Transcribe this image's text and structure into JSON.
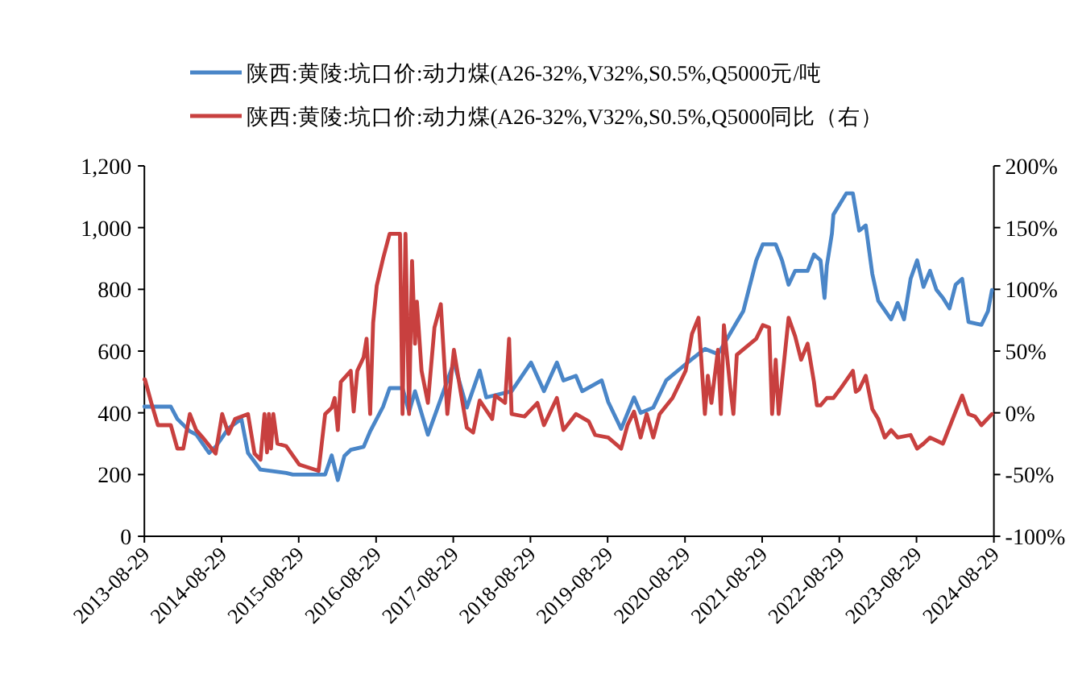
{
  "chart_data": {
    "type": "line",
    "legend": "top",
    "xlim": [
      "2013-08-29",
      "2024-08-29"
    ],
    "xticks": [
      "2013-08-29",
      "2014-08-29",
      "2015-08-29",
      "2016-08-29",
      "2017-08-29",
      "2018-08-29",
      "2019-08-29",
      "2020-08-29",
      "2021-08-29",
      "2022-08-29",
      "2023-08-29",
      "2024-08-29"
    ],
    "ylim": [
      0,
      1200
    ],
    "yticks": [
      0,
      200,
      400,
      600,
      800,
      {
        "value": 1000,
        "label": "1,000"
      },
      {
        "value": 1200,
        "label": "1,200"
      }
    ],
    "y2lim": [
      -100,
      200
    ],
    "y2ticks": [
      {
        "value": -100,
        "label": "-100%"
      },
      {
        "value": -50,
        "label": "-50%"
      },
      {
        "value": 0,
        "label": "0%"
      },
      {
        "value": 50,
        "label": "50%"
      },
      {
        "value": 100,
        "label": "100%"
      },
      {
        "value": 150,
        "label": "150%"
      },
      {
        "value": 200,
        "label": "200%"
      }
    ],
    "series": [
      {
        "name": "陕西:黄陵:坑口价:动力煤(A26-32%,V32%,S0.5%,Q5000元/吨",
        "color": "#4a86c8",
        "x": [
          "2013-08-29",
          "2014-01",
          "2014-02",
          "2014-04",
          "2014-05",
          "2014-07",
          "2014-08",
          "2014-10",
          "2014-12",
          "2015-01",
          "2015-03",
          "2015-07",
          "2015-08",
          "2016-01",
          "2016-02",
          "2016-03",
          "2016-04",
          "2016-05",
          "2016-07",
          "2016-08",
          "2016-10",
          "2016-11",
          "2017-01",
          "2017-02",
          "2017-03",
          "2017-05",
          "2017-09",
          "2017-11",
          "2018-01",
          "2018-02",
          "2018-06",
          "2018-09",
          "2018-11",
          "2019-01",
          "2019-02",
          "2019-04",
          "2019-05",
          "2019-08",
          "2019-09",
          "2019-11",
          "2020-01",
          "2020-02",
          "2020-04",
          "2020-06",
          "2020-08",
          "2020-10",
          "2020-12",
          "2021-02",
          "2021-05",
          "2021-06",
          "2021-08",
          "2021-09",
          "2021-11",
          "2021-12",
          "2022-01",
          "2022-02",
          "2022-04",
          "2022-05",
          "2022-06",
          "2022-06-20",
          "2022-07",
          "2022-07-25",
          "2022-08",
          "2022-10",
          "2022-11",
          "2022-12",
          "2023-01",
          "2023-02",
          "2023-03",
          "2023-05",
          "2023-06",
          "2023-07",
          "2023-08",
          "2023-09",
          "2023-10",
          "2023-11",
          "2023-12",
          "2024-01",
          "2024-02",
          "2024-03",
          "2024-04",
          "2024-05",
          "2024-07",
          "2024-08",
          "2024-08-20"
        ],
        "values": [
          420,
          420,
          380,
          340,
          330,
          270,
          290,
          350,
          380,
          270,
          216,
          205,
          200,
          200,
          262,
          182,
          260,
          280,
          290,
          340,
          420,
          480,
          480,
          403,
          470,
          329,
          563,
          417,
          537,
          450,
          470,
          563,
          470,
          563,
          505,
          520,
          470,
          505,
          435,
          348,
          450,
          400,
          417,
          505,
          540,
          574,
          607,
          590,
          694,
          730,
          894,
          946,
          946,
          894,
          815,
          860,
          860,
          913,
          894,
          772,
          877,
          981,
          1042,
          1111,
          1111,
          990,
          1007,
          850,
          763,
          703,
          756,
          703,
          834,
          894,
          808,
          860,
          799,
          772,
          738,
          815,
          834,
          694,
          685,
          729,
          798
        ]
      },
      {
        "name": "陕西:黄陵:坑口价:动力煤(A26-32%,V32%,S0.5%,Q5000同比（右）",
        "color": "#c8403f",
        "axis": "y2",
        "x": [
          "2013-08-29",
          "2013-09",
          "2013-10",
          "2013-11",
          "2014-01",
          "2014-02",
          "2014-03",
          "2014-04",
          "2014-05",
          "2014-06",
          "2014-08",
          "2014-09",
          "2014-10",
          "2014-11",
          "2015-01",
          "2015-02",
          "2015-03",
          "2015-03-20",
          "2015-04",
          "2015-04-10",
          "2015-04-20",
          "2015-05",
          "2015-05-20",
          "2015-07",
          "2015-09",
          "2015-12",
          "2016-01",
          "2016-02",
          "2016-02-15",
          "2016-03",
          "2016-03-15",
          "2016-05",
          "2016-05-15",
          "2016-06",
          "2016-07",
          "2016-07-15",
          "2016-08",
          "2016-08-15",
          "2016-09",
          "2016-10",
          "2016-11",
          "2016-12-20",
          "2017-01",
          "2017-01-15",
          "2017-02",
          "2017-02-15",
          "2017-03",
          "2017-03-10",
          "2017-04",
          "2017-05",
          "2017-06",
          "2017-07",
          "2017-08",
          "2017-09",
          "2017-10",
          "2017-11",
          "2017-12",
          "2018-01",
          "2018-03",
          "2018-03-15",
          "2018-05",
          "2018-05-20",
          "2018-06",
          "2018-08",
          "2018-10",
          "2018-11",
          "2019-01",
          "2019-02",
          "2019-04",
          "2019-06",
          "2019-07",
          "2019-09",
          "2019-11",
          "2019-12",
          "2020-01",
          "2020-02",
          "2020-03",
          "2020-04",
          "2020-05",
          "2020-07",
          "2020-09",
          "2020-10",
          "2020-11",
          "2020-12",
          "2020-12-15",
          "2021-01",
          "2021-02",
          "2021-02-15",
          "2021-03",
          "2021-04",
          "2021-04-15",
          "2021-05",
          "2021-08",
          "2021-09",
          "2021-10",
          "2021-10-15",
          "2021-11",
          "2021-11-15",
          "2022-01",
          "2022-02",
          "2022-03",
          "2022-04",
          "2022-05",
          "2022-05-15",
          "2022-06",
          "2022-07",
          "2022-08",
          "2022-09",
          "2022-11",
          "2022-11-15",
          "2022-12",
          "2023-01",
          "2023-02",
          "2023-03",
          "2023-04",
          "2023-05",
          "2023-06",
          "2023-08",
          "2023-09",
          "2023-10",
          "2023-11",
          "2024-01",
          "2024-03",
          "2024-04",
          "2024-05",
          "2024-06",
          "2024-07",
          "2024-08-20"
        ],
        "values": [
          27,
          27,
          8,
          -10,
          -10,
          -29,
          -29,
          -1,
          -14,
          -20,
          -33,
          -1,
          -17,
          -5,
          -1,
          -33,
          -38,
          -1,
          -32,
          -1,
          -29,
          -1,
          -25,
          -27,
          -42,
          -47,
          -1,
          4,
          12,
          -14,
          25,
          34,
          1,
          34,
          45,
          60,
          -1,
          73,
          103,
          125,
          145,
          145,
          -1,
          145,
          -1,
          123,
          56,
          90,
          34,
          8,
          69,
          88,
          -1,
          51,
          19,
          -12,
          -16,
          10,
          -5,
          14,
          8,
          60,
          -1,
          -3,
          8,
          -10,
          12,
          -14,
          -1,
          -7,
          -18,
          -20,
          -29,
          -10,
          1,
          -20,
          -1,
          -20,
          -1,
          12,
          34,
          64,
          77,
          -1,
          30,
          8,
          51,
          -1,
          71,
          19,
          -1,
          47,
          60,
          71,
          69,
          -1,
          43,
          -1,
          77,
          62,
          43,
          56,
          25,
          6,
          6,
          12,
          12,
          19,
          34,
          17,
          19,
          30,
          3,
          -5,
          -20,
          -14,
          -20,
          -18,
          -29,
          -25,
          -20,
          -25,
          1,
          14,
          -1,
          -3,
          -10,
          -1
        ]
      }
    ]
  }
}
